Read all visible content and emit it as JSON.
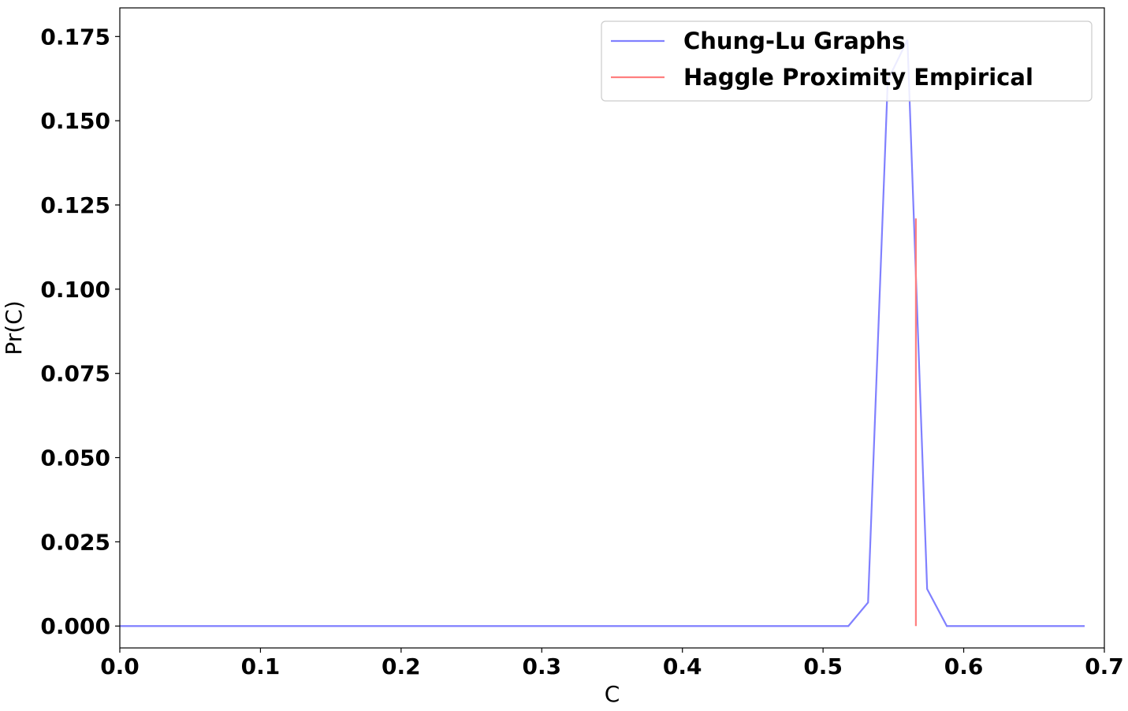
{
  "chart_data": {
    "type": "line",
    "title": "",
    "xlabel": "C",
    "ylabel": "Pr(C)",
    "xlim": [
      0.0,
      0.7
    ],
    "ylim": [
      -0.0065,
      0.1835
    ],
    "x_ticks": [
      0.0,
      0.1,
      0.2,
      0.3,
      0.4,
      0.5,
      0.6,
      0.7
    ],
    "x_tick_labels": [
      "0.0",
      "0.1",
      "0.2",
      "0.3",
      "0.4",
      "0.5",
      "0.6",
      "0.7"
    ],
    "y_ticks": [
      0.0,
      0.025,
      0.05,
      0.075,
      0.1,
      0.125,
      0.15,
      0.175
    ],
    "y_tick_labels": [
      "0.000",
      "0.025",
      "0.050",
      "0.075",
      "0.100",
      "0.125",
      "0.150",
      "0.175"
    ],
    "grid": false,
    "legend_position": "top-right",
    "series": [
      {
        "name": "Chung-Lu Graphs",
        "color": "#8080ff",
        "x": [
          0.0,
          0.518,
          0.532,
          0.546,
          0.56,
          0.574,
          0.588,
          0.686
        ],
        "y": [
          0.0,
          0.0,
          0.007,
          0.162,
          0.174,
          0.011,
          0.0,
          0.0
        ]
      },
      {
        "name": "Haggle Proximity Empirical",
        "color": "#ff7f7f",
        "x": [
          0.566,
          0.566
        ],
        "y": [
          0.0,
          0.121
        ]
      }
    ]
  }
}
